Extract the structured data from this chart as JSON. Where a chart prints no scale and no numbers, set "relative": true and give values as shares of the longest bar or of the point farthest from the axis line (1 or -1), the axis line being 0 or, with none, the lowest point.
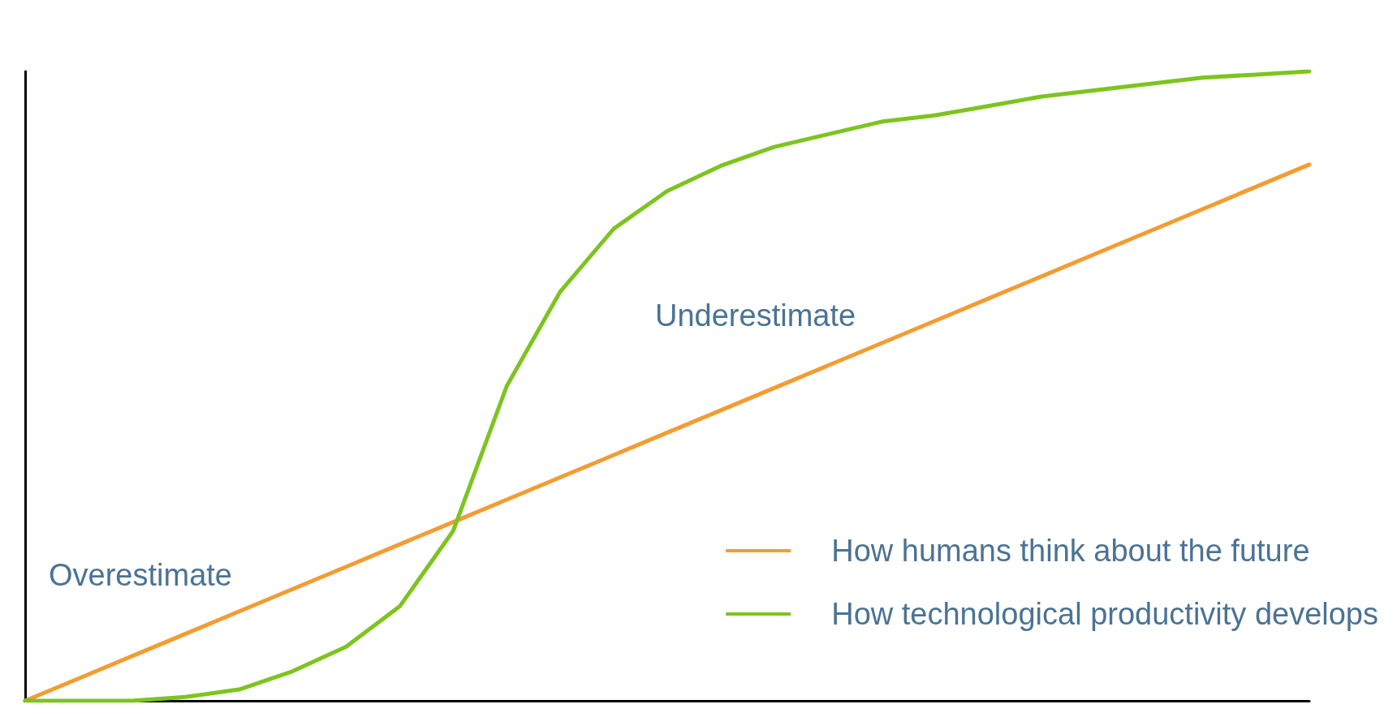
{
  "chart_data": {
    "type": "line",
    "relative": true,
    "categories": [
      null,
      null,
      null,
      null,
      null,
      null,
      null,
      null,
      null,
      null,
      null,
      null,
      null,
      null,
      null,
      null,
      null,
      null,
      null,
      null,
      null,
      null,
      null,
      null,
      null
    ],
    "series": [
      {
        "name": "How humans think about the future",
        "color": "#f39c34",
        "values": [
          0,
          0.0355,
          0.071,
          0.1065,
          0.142,
          0.1775,
          0.213,
          0.2485,
          0.284,
          0.3195,
          0.355,
          0.3905,
          0.426,
          0.4615,
          0.497,
          0.5325,
          0.568,
          0.6035,
          0.639,
          0.6745,
          0.71,
          0.7455,
          0.781,
          0.8165,
          0.852
        ]
      },
      {
        "name": "How technological productivity develops",
        "color": "#7dc41f",
        "values": [
          0,
          0,
          0,
          0.006,
          0.018,
          0.047,
          0.086,
          0.15,
          0.27,
          0.5,
          0.65,
          0.75,
          0.81,
          0.85,
          0.88,
          0.9,
          0.92,
          0.93,
          0.945,
          0.96,
          0.97,
          0.98,
          0.99,
          0.995,
          1
        ]
      }
    ],
    "annotations": [
      "Overestimate",
      "Underestimate"
    ],
    "legend": "bottom right",
    "grid": false,
    "marker": "none",
    "line_style": "solid"
  }
}
